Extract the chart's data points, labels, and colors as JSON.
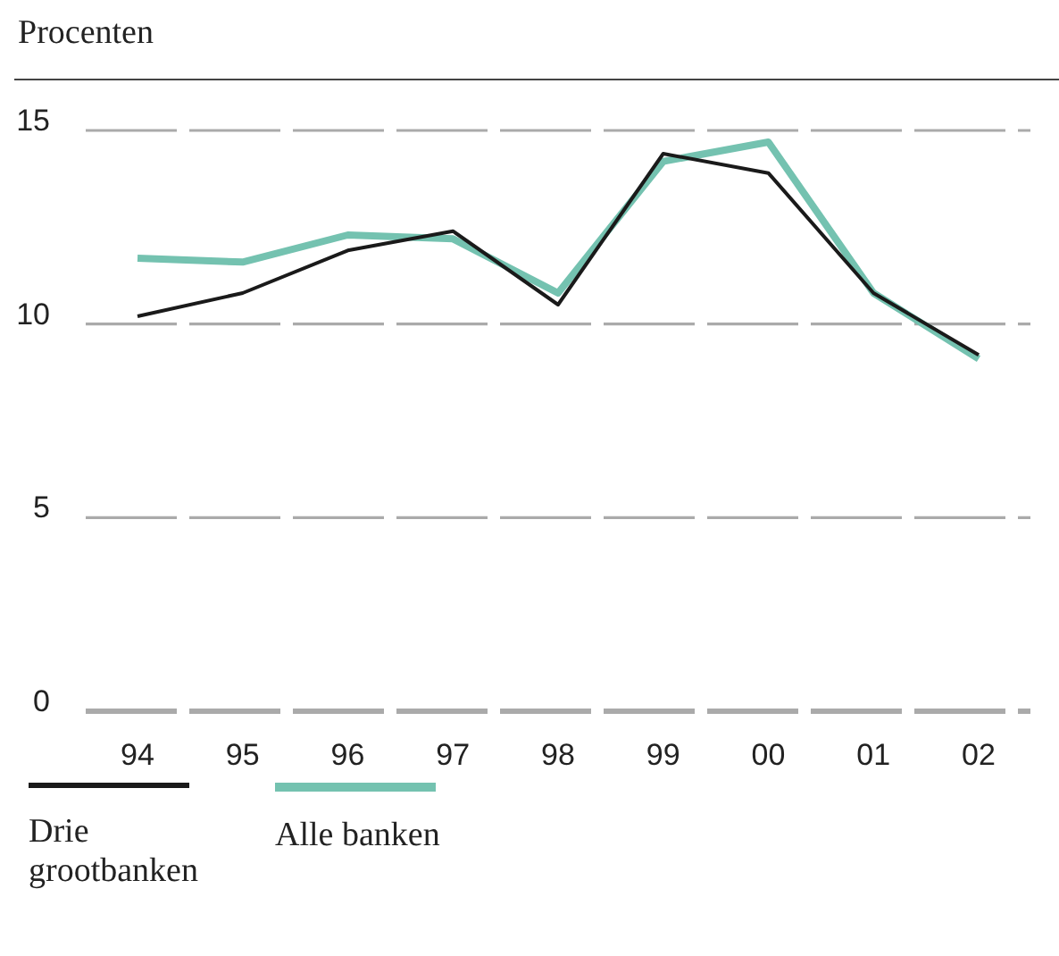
{
  "chart_data": {
    "type": "line",
    "ylabel": "Procenten",
    "categories": [
      "94",
      "95",
      "96",
      "97",
      "98",
      "99",
      "00",
      "01",
      "02"
    ],
    "series": [
      {
        "name": "Drie grootbanken",
        "color": "#1a1a1a",
        "values": [
          10.2,
          10.8,
          11.9,
          12.4,
          10.5,
          14.4,
          13.9,
          10.8,
          9.2
        ]
      },
      {
        "name": "Alle banken",
        "color": "#74c2b0",
        "values": [
          11.7,
          11.6,
          12.3,
          12.2,
          10.8,
          14.2,
          14.7,
          10.8,
          9.1
        ]
      }
    ],
    "ylim": [
      0,
      15
    ],
    "yticks": [
      0,
      5,
      10,
      15
    ],
    "grid": "y",
    "legend": "bottom",
    "marker": "none"
  }
}
